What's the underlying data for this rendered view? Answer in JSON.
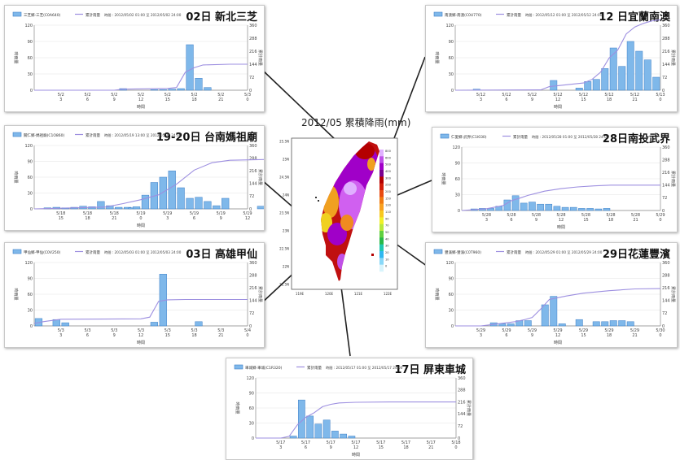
{
  "map": {
    "title": "2012/05 累積降雨(mm)",
    "y_ticks": [
      "25.5N",
      "25N",
      "24.5N",
      "24N",
      "23.5N",
      "23N",
      "22.5N",
      "22N",
      "21.5N"
    ],
    "x_ticks": [
      "119E",
      "120E",
      "121E",
      "122E"
    ],
    "legend_values": [
      "800",
      "600",
      "500",
      "400",
      "300",
      "250",
      "200",
      "150",
      "130",
      "110",
      "90",
      "70",
      "50",
      "40",
      "30",
      "20",
      "10",
      "0"
    ],
    "legend_colors": [
      "#e0b0ff",
      "#c050e8",
      "#a000c8",
      "#7a0090",
      "#b40000",
      "#d21c0a",
      "#e84a10",
      "#f07a10",
      "#f8a020",
      "#f8c820",
      "#f0f028",
      "#b8e83c",
      "#60d040",
      "#28b848",
      "#20c8b0",
      "#30b8f0",
      "#88d8f8",
      "#d8f4fc"
    ]
  },
  "chart_data": [
    {
      "id": "sanzhi",
      "type": "bar",
      "title": "02日 新北三芝",
      "legend": [
        "三芝鄉-三芝(C0A640)",
        "累計雨量"
      ],
      "period": "時間 : 2012/05/02 01:00 至 2012/05/02 24:00",
      "xlabel": "時間",
      "ylabel_left": "時雨量",
      "ylabel_right": "累計雨量",
      "categories": [
        "5/2 3",
        "5/2 6",
        "5/2 9",
        "5/2 12",
        "5/2 15",
        "5/2 18",
        "5/2 21",
        "5/3 0"
      ],
      "y_ticks": [
        "0",
        "30",
        "60",
        "90",
        "120"
      ],
      "y2_ticks": [
        "0",
        "72",
        "144",
        "216",
        "288",
        "360"
      ],
      "ylim": [
        0,
        120
      ],
      "y2lim": [
        0,
        360
      ],
      "series": [
        {
          "name": "三芝鄉-三芝(C0A640)",
          "type": "bar",
          "x": [
            9.5,
            13,
            14,
            15,
            16,
            17,
            18,
            19
          ],
          "values": [
            3,
            1,
            1,
            2,
            3,
            84,
            22,
            5
          ]
        },
        {
          "name": "累計雨量",
          "type": "line",
          "x": [
            0,
            9,
            10,
            13,
            15,
            16,
            17,
            18,
            19,
            22,
            24
          ],
          "values": [
            0,
            0,
            6,
            8,
            10,
            15,
            100,
            125,
            140,
            144,
            144
          ]
        }
      ]
    },
    {
      "id": "tainan",
      "type": "bar",
      "title": "19-20日 台南媽祖廟",
      "legend": [
        "關仁鄉-媽祖廟(C1O860)",
        "累計雨量"
      ],
      "period": "時間 : 2012/05/19 13:00 至 2012/05/21 24:00",
      "xlabel": "時間",
      "ylabel_left": "時雨量",
      "ylabel_right": "累計雨量",
      "categories": [
        "5/18 15",
        "5/18 18",
        "5/18 21",
        "5/19 0",
        "5/19 3",
        "5/19 6",
        "5/19 9",
        "5/19 12",
        "5/19 15",
        "5/19 18",
        "5/19 21",
        "5/20 0"
      ],
      "y_ticks": [
        "0",
        "30",
        "60",
        "90",
        "120"
      ],
      "y2_ticks": [
        "0",
        "72",
        "144",
        "216",
        "288",
        "360"
      ],
      "ylim": [
        0,
        120
      ],
      "y2lim": [
        0,
        360
      ],
      "series": [
        {
          "name": "關仁鄉-媽祖廟(C1O860)",
          "type": "bar",
          "x": [
            1,
            2,
            3,
            4,
            5,
            6,
            7,
            8,
            9,
            10,
            10.5,
            11,
            12,
            13,
            14,
            15,
            16,
            17,
            18,
            19,
            20,
            21,
            25,
            30
          ],
          "values": [
            2,
            3,
            2,
            3,
            5,
            4,
            14,
            6,
            3,
            3,
            2,
            4,
            26,
            50,
            60,
            72,
            40,
            20,
            22,
            14,
            6,
            20,
            5,
            2
          ]
        },
        {
          "name": "累計雨量",
          "type": "line",
          "x": [
            0,
            8,
            10,
            12,
            14,
            16,
            18,
            20,
            22,
            26,
            33
          ],
          "values": [
            0,
            10,
            30,
            52,
            80,
            140,
            220,
            262,
            276,
            280,
            282
          ]
        }
      ]
    },
    {
      "id": "jiaxian",
      "type": "bar",
      "title": "03日 高雄甲仙",
      "legend": [
        "甲仙鄉-甲仙(C0V250)",
        "累計雨量"
      ],
      "period": "時間 : 2012/05/03 01:00 至 2012/05/03 24:00",
      "xlabel": "時間",
      "ylabel_left": "時雨量",
      "ylabel_right": "累計雨量",
      "categories": [
        "5/3 3",
        "5/3 6",
        "5/3 9",
        "5/3 12",
        "5/3 15",
        "5/3 18",
        "5/3 21",
        "5/4 0"
      ],
      "y_ticks": [
        "0",
        "30",
        "60",
        "90",
        "120"
      ],
      "y2_ticks": [
        "0",
        "72",
        "144",
        "216",
        "288",
        "360"
      ],
      "ylim": [
        0,
        120
      ],
      "y2lim": [
        0,
        360
      ],
      "series": [
        {
          "name": "甲仙鄉-甲仙(C0V250)",
          "type": "bar",
          "x": [
            0,
            2,
            3,
            13,
            14,
            18
          ],
          "values": [
            14,
            12,
            6,
            7,
            98,
            8
          ]
        },
        {
          "name": "累計雨量",
          "type": "line",
          "x": [
            0,
            1,
            3,
            12,
            13,
            14,
            15,
            17,
            21,
            24
          ],
          "values": [
            14,
            24,
            38,
            40,
            50,
            140,
            148,
            150,
            150,
            150
          ]
        }
      ]
    },
    {
      "id": "nanao",
      "type": "bar",
      "title": "12 日宜蘭南澳",
      "legend": [
        "南澳鄉-南澳(C0U770)",
        "累計雨量"
      ],
      "period": "時間 : 2012/05/12 01:00 至 2012/05/12 24:00",
      "xlabel": "時間",
      "ylabel_left": "時雨量",
      "ylabel_right": "累計雨量",
      "categories": [
        "5/12 3",
        "5/12 6",
        "5/12 9",
        "5/12 12",
        "5/12 15",
        "5/12 18",
        "5/12 21",
        "5/13 0"
      ],
      "y_ticks": [
        "0",
        "30",
        "60",
        "90",
        "120"
      ],
      "y2_ticks": [
        "0",
        "72",
        "144",
        "216",
        "288",
        "360"
      ],
      "ylim": [
        0,
        120
      ],
      "y2lim": [
        0,
        360
      ],
      "series": [
        {
          "name": "南澳鄉-南澳(C0U770)",
          "type": "bar",
          "x": [
            2,
            11,
            14,
            15,
            16,
            17,
            18,
            19,
            20,
            21,
            22,
            23
          ],
          "values": [
            2,
            18,
            4,
            16,
            20,
            40,
            78,
            44,
            90,
            72,
            56,
            24
          ]
        },
        {
          "name": "累計雨量",
          "type": "line",
          "x": [
            0,
            10,
            11,
            15,
            16,
            17,
            18,
            19,
            20,
            21,
            22,
            23,
            24
          ],
          "values": [
            0,
            2,
            20,
            40,
            60,
            100,
            178,
            222,
            312,
            350,
            370,
            384,
            390
          ]
        }
      ]
    },
    {
      "id": "wujie",
      "type": "bar",
      "title": "28日南投武界",
      "legend": [
        "仁愛鄉-武界(C1I030)",
        "累計雨量"
      ],
      "period": "時間 : 2012/05/28 01:00 至 2012/05/28 24:00",
      "xlabel": "時間",
      "ylabel_left": "時雨量",
      "ylabel_right": "累計雨量",
      "categories": [
        "5/28 3",
        "5/28 6",
        "5/28 9",
        "5/28 12",
        "5/28 15",
        "5/28 18",
        "5/28 21",
        "5/29 0"
      ],
      "y_ticks": [
        "0",
        "30",
        "60",
        "90",
        "120"
      ],
      "y2_ticks": [
        "0",
        "72",
        "144",
        "216",
        "288",
        "360"
      ],
      "ylim": [
        0,
        120
      ],
      "y2lim": [
        0,
        360
      ],
      "series": [
        {
          "name": "仁愛鄉-武界(C1I030)",
          "type": "bar",
          "x": [
            1,
            2,
            3,
            4,
            5,
            6,
            7,
            8,
            9,
            10,
            11,
            12,
            13,
            14,
            15,
            16,
            17
          ],
          "values": [
            3,
            4,
            4,
            8,
            20,
            28,
            14,
            16,
            12,
            12,
            8,
            6,
            6,
            4,
            4,
            3,
            4
          ]
        },
        {
          "name": "累計雨量",
          "type": "line",
          "x": [
            0,
            3,
            5,
            6,
            7,
            8,
            9,
            10,
            12,
            14,
            16,
            18,
            20,
            24
          ],
          "values": [
            0,
            10,
            28,
            56,
            70,
            86,
            98,
            110,
            124,
            134,
            140,
            144,
            144,
            144
          ]
        }
      ]
    },
    {
      "id": "fengbin",
      "type": "bar",
      "title": "29日花蓮豐濱",
      "legend": [
        "豐濱鄉-豐濱(C0T960)",
        "累計雨量"
      ],
      "period": "時間 : 2012/05/29 01:00 至 2012/05/29 24:00",
      "xlabel": "時間",
      "ylabel_left": "時雨量",
      "ylabel_right": "累計雨量",
      "categories": [
        "5/29 3",
        "5/29 6",
        "5/29 9",
        "5/29 12",
        "5/29 15",
        "5/29 18",
        "5/29 21",
        "5/30 0"
      ],
      "y_ticks": [
        "0",
        "30",
        "60",
        "90",
        "120"
      ],
      "y2_ticks": [
        "0",
        "72",
        "144",
        "216",
        "288",
        "360"
      ],
      "ylim": [
        0,
        120
      ],
      "y2lim": [
        0,
        360
      ],
      "series": [
        {
          "name": "豐濱鄉-豐濱(C0T960)",
          "type": "bar",
          "x": [
            4,
            5,
            6,
            7,
            8,
            10,
            11,
            12,
            14,
            16,
            17,
            18,
            19,
            20
          ],
          "values": [
            6,
            4,
            4,
            10,
            10,
            40,
            56,
            4,
            12,
            8,
            8,
            10,
            10,
            8
          ]
        },
        {
          "name": "累計雨量",
          "type": "line",
          "x": [
            0,
            3,
            5,
            7,
            8,
            9,
            10,
            11,
            12,
            13,
            15,
            18,
            21,
            24
          ],
          "values": [
            0,
            0,
            12,
            24,
            34,
            48,
            96,
            150,
            160,
            170,
            186,
            200,
            210,
            212
          ]
        }
      ]
    },
    {
      "id": "checheng",
      "type": "bar",
      "title": "17日 屏東車城",
      "legend": [
        "車城鄉-車城(C1R320)",
        "累計雨量"
      ],
      "period": "時間 : 2012/05/17 01:00 至 2012/05/17 24:00",
      "xlabel": "時間",
      "ylabel_left": "時雨量",
      "ylabel_right": "累計雨量",
      "categories": [
        "5/17 3",
        "5/17 6",
        "5/17 9",
        "5/17 12",
        "5/17 15",
        "5/17 18",
        "5/17 21",
        "5/18 0"
      ],
      "y_ticks": [
        "0",
        "30",
        "60",
        "90",
        "120"
      ],
      "y2_ticks": [
        "0",
        "72",
        "144",
        "216",
        "288",
        "360"
      ],
      "ylim": [
        0,
        120
      ],
      "y2lim": [
        0,
        360
      ],
      "series": [
        {
          "name": "車城鄉-車城(C1R320)",
          "type": "bar",
          "x": [
            4,
            5,
            6,
            7,
            8,
            9,
            10,
            11
          ],
          "values": [
            4,
            76,
            44,
            28,
            36,
            14,
            8,
            4
          ]
        },
        {
          "name": "累計雨量",
          "type": "line",
          "x": [
            0,
            3,
            4,
            5,
            6,
            7,
            8,
            9,
            10,
            12,
            16,
            24
          ],
          "values": [
            0,
            0,
            10,
            80,
            124,
            152,
            188,
            202,
            210,
            214,
            216,
            216
          ]
        }
      ]
    }
  ]
}
